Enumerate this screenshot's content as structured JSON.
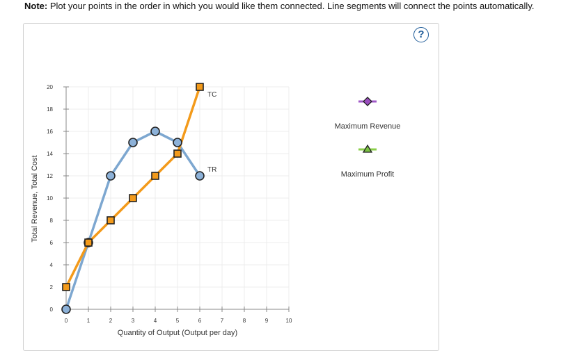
{
  "note": {
    "label": "Note:",
    "text": " Plot your points in the order in which you would like them connected. Line segments will connect the points automatically."
  },
  "help_symbol": "?",
  "colors": {
    "tr_line": "#7da7d0",
    "tc_line": "#f39a1a",
    "tr_marker": "#8cb1d8",
    "tc_marker": "#f39a1a",
    "max_revenue": "#a05ac8",
    "max_revenue_fill": "#9b4dbf",
    "max_profit": "#8bcf4a",
    "max_profit_fill": "#7ac143"
  },
  "legend": {
    "items": [
      {
        "label": "Maximum Revenue",
        "icon": "diamond-icon"
      },
      {
        "label": "Maximum Profit",
        "icon": "triangle-icon"
      }
    ]
  },
  "chart_data": {
    "type": "line",
    "title": "",
    "xlabel": "Quantity of Output (Output per day)",
    "ylabel": "Total Revenue, Total Cost",
    "xlim": [
      0,
      10
    ],
    "ylim": [
      0,
      20
    ],
    "x_ticks": [
      "0",
      "1",
      "2",
      "3",
      "4",
      "5",
      "6",
      "7",
      "8",
      "9",
      "10"
    ],
    "y_ticks": [
      "0",
      "2",
      "4",
      "6",
      "8",
      "10",
      "12",
      "14",
      "16",
      "18",
      "20"
    ],
    "grid": true,
    "series": [
      {
        "name": "TR",
        "marker": "circle",
        "points": [
          [
            0,
            0
          ],
          [
            1,
            6
          ],
          [
            2,
            12
          ],
          [
            3,
            15
          ],
          [
            4,
            16
          ],
          [
            5,
            15
          ],
          [
            6,
            12
          ]
        ]
      },
      {
        "name": "TC",
        "marker": "square",
        "points": [
          [
            0,
            2
          ],
          [
            1,
            6
          ],
          [
            2,
            8
          ],
          [
            3,
            10
          ],
          [
            4,
            12
          ],
          [
            5,
            14
          ],
          [
            6,
            20
          ]
        ]
      }
    ]
  }
}
